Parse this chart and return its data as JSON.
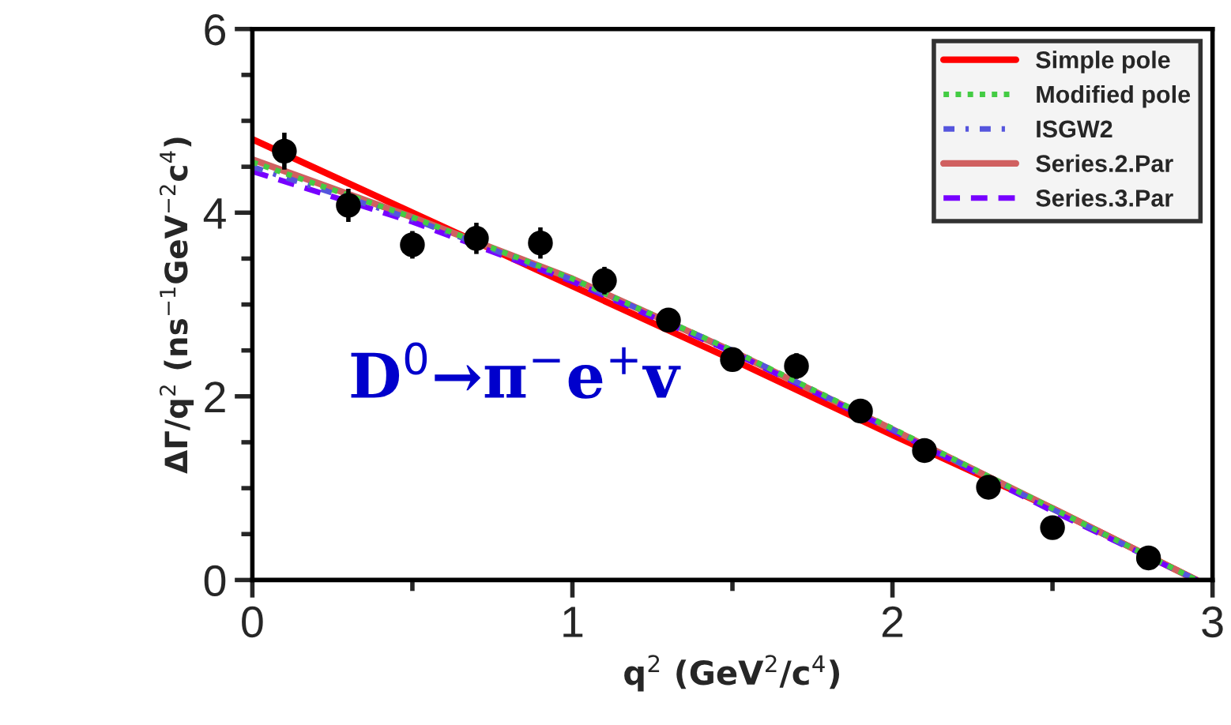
{
  "chart_data": {
    "type": "line",
    "xlabel": "q$^{2}$ (GeV$^{2}$/c$^{4}$)",
    "ylabel": "ΔΓ/q$^{2}$ (ns$^{−1}$GeV$^{−2}$c$^{4}$)",
    "xlim": [
      0,
      3
    ],
    "ylim": [
      0,
      6
    ],
    "xticks": [
      0,
      1,
      2,
      3
    ],
    "yticks": [
      0,
      2,
      4,
      6
    ],
    "grid": false,
    "legend": "top right",
    "annotations": [
      "D$^{0}$→π$^{−}$e$^{+}$v"
    ],
    "series": [
      {
        "name": "Simple pole",
        "color": "#ff0000",
        "line_style": "solid",
        "x": [
          0,
          0.5,
          1,
          1.5,
          2,
          2.5,
          2.95
        ],
        "values": [
          4.8,
          4.0,
          3.2,
          2.4,
          1.58,
          0.78,
          0
        ]
      },
      {
        "name": "Modified pole",
        "color": "#44cc44",
        "line_style": "dotted",
        "x": [
          0,
          0.5,
          1,
          1.5,
          2,
          2.5,
          2.95
        ],
        "values": [
          4.55,
          3.95,
          3.28,
          2.5,
          1.65,
          0.78,
          0
        ]
      },
      {
        "name": "ISGW2",
        "color": "#5555dd",
        "line_style": "dashdot",
        "x": [
          0,
          0.5,
          1,
          1.5,
          2,
          2.5,
          2.95
        ],
        "values": [
          4.5,
          3.93,
          3.27,
          2.5,
          1.64,
          0.77,
          0
        ]
      },
      {
        "name": "Series.2.Par",
        "color": "#d06060",
        "line_style": "solid",
        "x": [
          0,
          0.5,
          1,
          1.5,
          2,
          2.5,
          2.95
        ],
        "values": [
          4.58,
          3.95,
          3.28,
          2.49,
          1.64,
          0.78,
          0
        ]
      },
      {
        "name": "Series.3.Par",
        "color": "#7700ff",
        "line_style": "dashed",
        "x": [
          0,
          0.5,
          1,
          1.5,
          2,
          2.5,
          2.95
        ],
        "values": [
          4.45,
          3.9,
          3.25,
          2.48,
          1.63,
          0.75,
          0
        ]
      },
      {
        "type": "scatter",
        "color": "#000000",
        "marker": "circle",
        "x": [
          0.1,
          0.3,
          0.5,
          0.7,
          0.9,
          1.1,
          1.3,
          1.5,
          1.7,
          1.9,
          2.1,
          2.3,
          2.5,
          2.8
        ],
        "values": [
          4.67,
          4.08,
          3.65,
          3.72,
          3.67,
          3.26,
          2.83,
          2.4,
          2.33,
          1.84,
          1.41,
          1.01,
          0.57,
          0.24
        ],
        "errors": [
          0.2,
          0.18,
          0.15,
          0.17,
          0.17,
          0.15,
          0.12,
          0.12,
          0.14,
          0.1,
          0.08,
          0.08,
          0.06,
          0.05
        ]
      }
    ]
  }
}
